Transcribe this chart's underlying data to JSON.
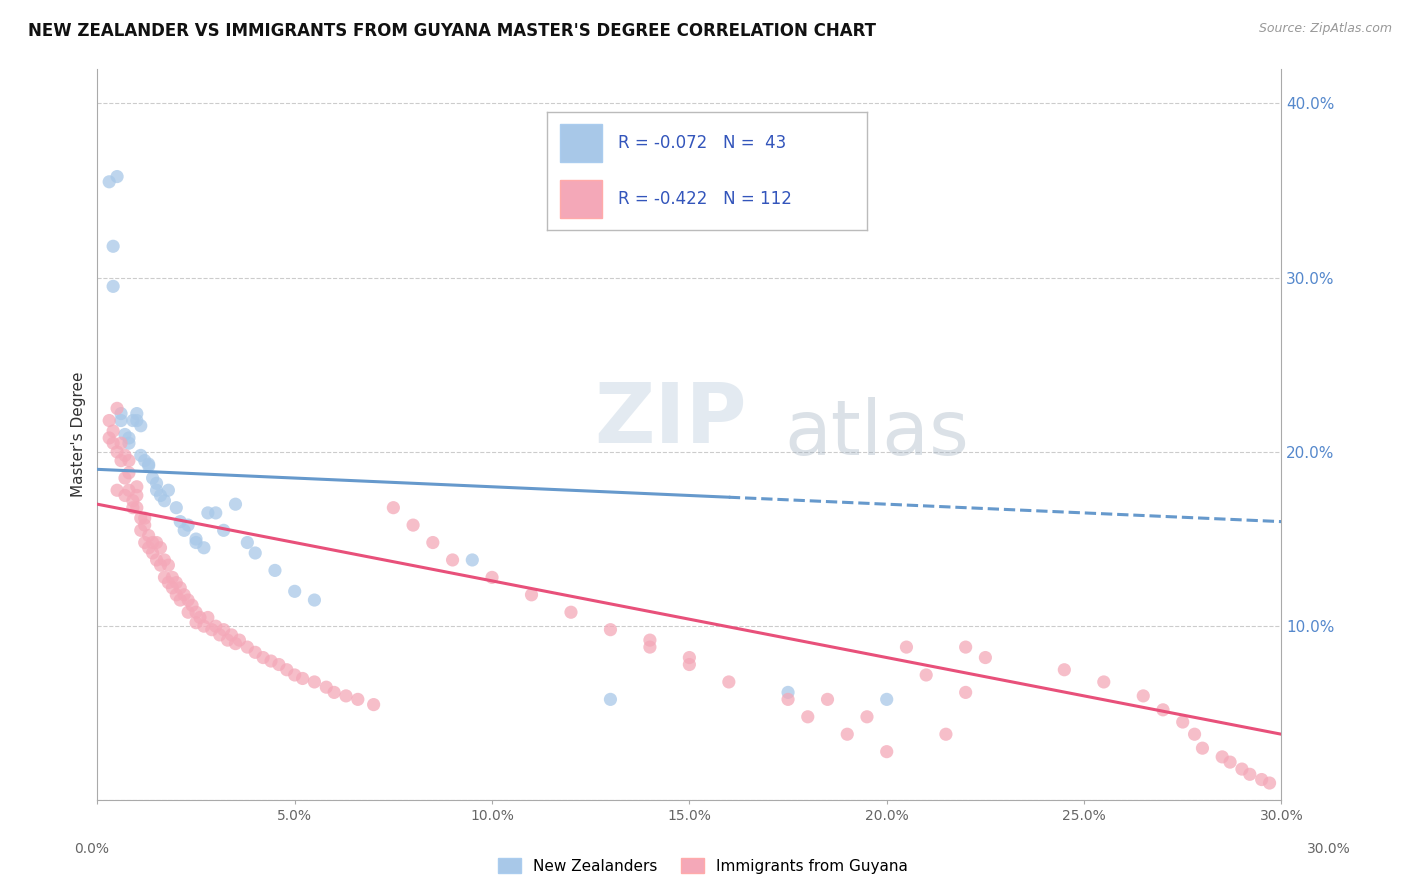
{
  "title": "NEW ZEALANDER VS IMMIGRANTS FROM GUYANA MASTER'S DEGREE CORRELATION CHART",
  "source": "Source: ZipAtlas.com",
  "ylabel": "Master's Degree",
  "legend_blue_R": "R = -0.072",
  "legend_blue_N": "N =  43",
  "legend_pink_R": "R = -0.422",
  "legend_pink_N": "N = 112",
  "legend_label_blue": "New Zealanders",
  "legend_label_pink": "Immigrants from Guyana",
  "blue_color": "#A8C8E8",
  "pink_color": "#F4A8B8",
  "blue_line_color": "#6699CC",
  "pink_line_color": "#E8507A",
  "legend_text_color": "#3355BB",
  "xlim": [
    0.0,
    0.3
  ],
  "ylim": [
    0.0,
    0.42
  ],
  "blue_scatter_x": [
    0.003,
    0.004,
    0.004,
    0.005,
    0.006,
    0.006,
    0.007,
    0.008,
    0.008,
    0.009,
    0.01,
    0.01,
    0.011,
    0.011,
    0.012,
    0.013,
    0.013,
    0.014,
    0.015,
    0.015,
    0.016,
    0.017,
    0.018,
    0.02,
    0.021,
    0.022,
    0.023,
    0.025,
    0.025,
    0.027,
    0.028,
    0.03,
    0.032,
    0.035,
    0.038,
    0.04,
    0.045,
    0.05,
    0.055,
    0.095,
    0.13,
    0.175,
    0.2
  ],
  "blue_scatter_y": [
    0.355,
    0.318,
    0.295,
    0.358,
    0.218,
    0.222,
    0.21,
    0.208,
    0.205,
    0.218,
    0.218,
    0.222,
    0.215,
    0.198,
    0.195,
    0.193,
    0.192,
    0.185,
    0.182,
    0.178,
    0.175,
    0.172,
    0.178,
    0.168,
    0.16,
    0.155,
    0.158,
    0.15,
    0.148,
    0.145,
    0.165,
    0.165,
    0.155,
    0.17,
    0.148,
    0.142,
    0.132,
    0.12,
    0.115,
    0.138,
    0.058,
    0.062,
    0.058
  ],
  "pink_scatter_x": [
    0.003,
    0.003,
    0.004,
    0.004,
    0.005,
    0.005,
    0.005,
    0.006,
    0.006,
    0.007,
    0.007,
    0.007,
    0.008,
    0.008,
    0.008,
    0.009,
    0.009,
    0.01,
    0.01,
    0.01,
    0.011,
    0.011,
    0.012,
    0.012,
    0.012,
    0.013,
    0.013,
    0.014,
    0.014,
    0.015,
    0.015,
    0.016,
    0.016,
    0.017,
    0.017,
    0.018,
    0.018,
    0.019,
    0.019,
    0.02,
    0.02,
    0.021,
    0.021,
    0.022,
    0.023,
    0.023,
    0.024,
    0.025,
    0.025,
    0.026,
    0.027,
    0.028,
    0.029,
    0.03,
    0.031,
    0.032,
    0.033,
    0.034,
    0.035,
    0.036,
    0.038,
    0.04,
    0.042,
    0.044,
    0.046,
    0.048,
    0.05,
    0.052,
    0.055,
    0.058,
    0.06,
    0.063,
    0.066,
    0.07,
    0.075,
    0.08,
    0.085,
    0.09,
    0.1,
    0.11,
    0.12,
    0.13,
    0.14,
    0.15,
    0.16,
    0.175,
    0.18,
    0.19,
    0.2,
    0.21,
    0.22,
    0.14,
    0.15,
    0.185,
    0.195,
    0.205,
    0.215,
    0.22,
    0.225,
    0.245,
    0.255,
    0.265,
    0.27,
    0.275,
    0.278,
    0.28,
    0.285,
    0.287,
    0.29,
    0.292,
    0.295,
    0.297
  ],
  "pink_scatter_y": [
    0.218,
    0.208,
    0.212,
    0.205,
    0.225,
    0.2,
    0.178,
    0.205,
    0.195,
    0.198,
    0.185,
    0.175,
    0.195,
    0.188,
    0.178,
    0.172,
    0.168,
    0.18,
    0.175,
    0.168,
    0.162,
    0.155,
    0.162,
    0.158,
    0.148,
    0.152,
    0.145,
    0.148,
    0.142,
    0.148,
    0.138,
    0.145,
    0.135,
    0.138,
    0.128,
    0.135,
    0.125,
    0.128,
    0.122,
    0.125,
    0.118,
    0.122,
    0.115,
    0.118,
    0.115,
    0.108,
    0.112,
    0.108,
    0.102,
    0.105,
    0.1,
    0.105,
    0.098,
    0.1,
    0.095,
    0.098,
    0.092,
    0.095,
    0.09,
    0.092,
    0.088,
    0.085,
    0.082,
    0.08,
    0.078,
    0.075,
    0.072,
    0.07,
    0.068,
    0.065,
    0.062,
    0.06,
    0.058,
    0.055,
    0.168,
    0.158,
    0.148,
    0.138,
    0.128,
    0.118,
    0.108,
    0.098,
    0.088,
    0.078,
    0.068,
    0.058,
    0.048,
    0.038,
    0.028,
    0.072,
    0.062,
    0.092,
    0.082,
    0.058,
    0.048,
    0.088,
    0.038,
    0.088,
    0.082,
    0.075,
    0.068,
    0.06,
    0.052,
    0.045,
    0.038,
    0.03,
    0.025,
    0.022,
    0.018,
    0.015,
    0.012,
    0.01
  ],
  "blue_trendline_x": [
    0.0,
    0.3
  ],
  "blue_trendline_y": [
    0.19,
    0.16
  ],
  "pink_trendline_x": [
    0.0,
    0.3
  ],
  "pink_trendline_y": [
    0.17,
    0.038
  ],
  "yticks": [
    0.0,
    0.1,
    0.2,
    0.3,
    0.4
  ],
  "xticks": [
    0.0,
    0.05,
    0.1,
    0.15,
    0.2,
    0.25,
    0.3
  ],
  "background_color": "#FFFFFF",
  "grid_color": "#CCCCCC"
}
